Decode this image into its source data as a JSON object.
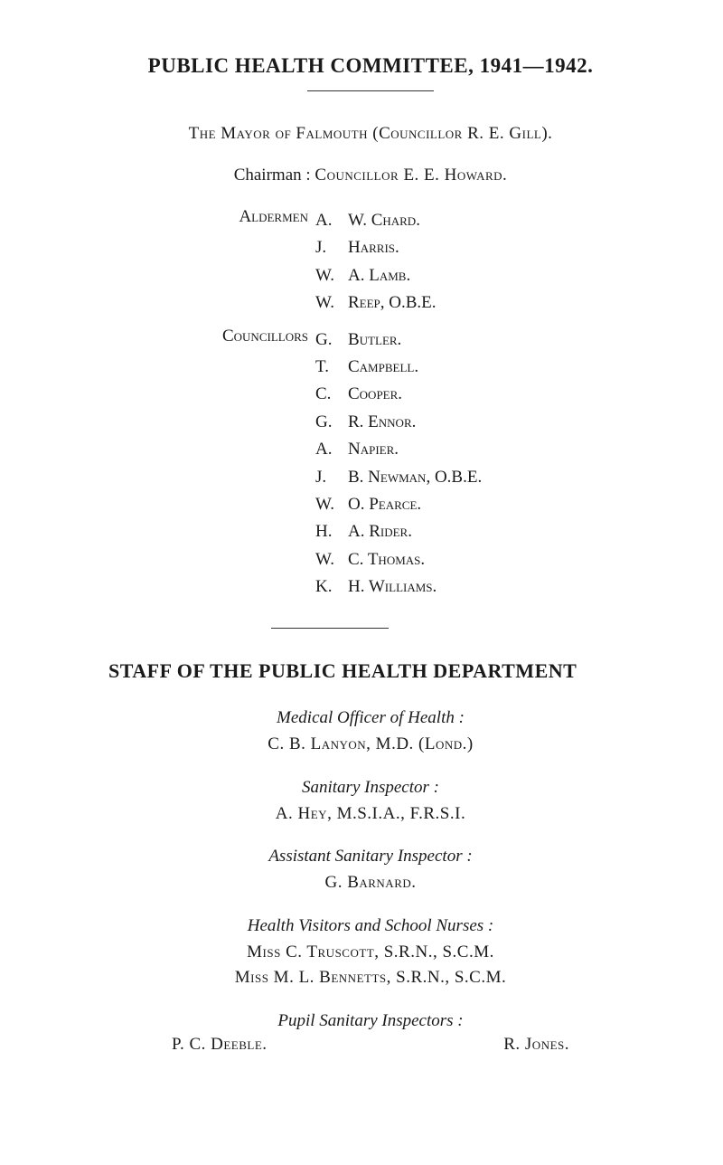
{
  "title": "PUBLIC HEALTH COMMITTEE, 1941—1942.",
  "mayor_prefix": "The Mayor of Falmouth (Councillor ",
  "mayor_name": "R. E. Gill",
  "mayor_suffix": ").",
  "chairman_label": "Chairman :",
  "chairman_prefix": "Councillor ",
  "chairman_name": "E. E. Howard.",
  "aldermen_label": "Aldermen",
  "aldermen": [
    {
      "initials": "A.",
      "name": "W. Chard."
    },
    {
      "initials": "J.",
      "name": "Harris."
    },
    {
      "initials": "W.",
      "name": "A. Lamb."
    },
    {
      "initials": "W.",
      "name": "Reep, O.B.E."
    }
  ],
  "councillors_label": "Councillors",
  "councillors": [
    {
      "initials": "G.",
      "name": "Butler."
    },
    {
      "initials": "T.",
      "name": "Campbell."
    },
    {
      "initials": "C.",
      "name": "Cooper."
    },
    {
      "initials": "G.",
      "name": "R. Ennor."
    },
    {
      "initials": "A.",
      "name": "Napier."
    },
    {
      "initials": "J.",
      "name": "B. Newman, O.B.E."
    },
    {
      "initials": "W.",
      "name": "O. Pearce."
    },
    {
      "initials": "H.",
      "name": "A. Rider."
    },
    {
      "initials": "W.",
      "name": "C. Thomas."
    },
    {
      "initials": "K.",
      "name": "H. Williams."
    }
  ],
  "staff_title": "STAFF OF THE PUBLIC HEALTH DEPARTMENT",
  "roles": [
    {
      "label": "Medical Officer of Health :",
      "persons": [
        "C. B. Lanyon, M.D. (Lond.)"
      ]
    },
    {
      "label": "Sanitary Inspector :",
      "persons": [
        "A. Hey, M.S.I.A., F.R.S.I."
      ]
    },
    {
      "label": "Assistant Sanitary Inspector :",
      "persons": [
        "G. Barnard."
      ]
    },
    {
      "label": "Health Visitors and School Nurses :",
      "persons": [
        "Miss C. Truscott, S.R.N., S.C.M.",
        "Miss M. L. Bennetts, S.R.N., S.C.M."
      ]
    }
  ],
  "pupil_label": "Pupil Sanitary Inspectors :",
  "pupil_inspectors": [
    "P. C. Deeble.",
    "R. Jones."
  ],
  "colors": {
    "background": "#ffffff",
    "text": "#1a1a1a",
    "rule": "#333333"
  },
  "fontsizes": {
    "title": 23,
    "body": 19,
    "section_title": 22
  }
}
